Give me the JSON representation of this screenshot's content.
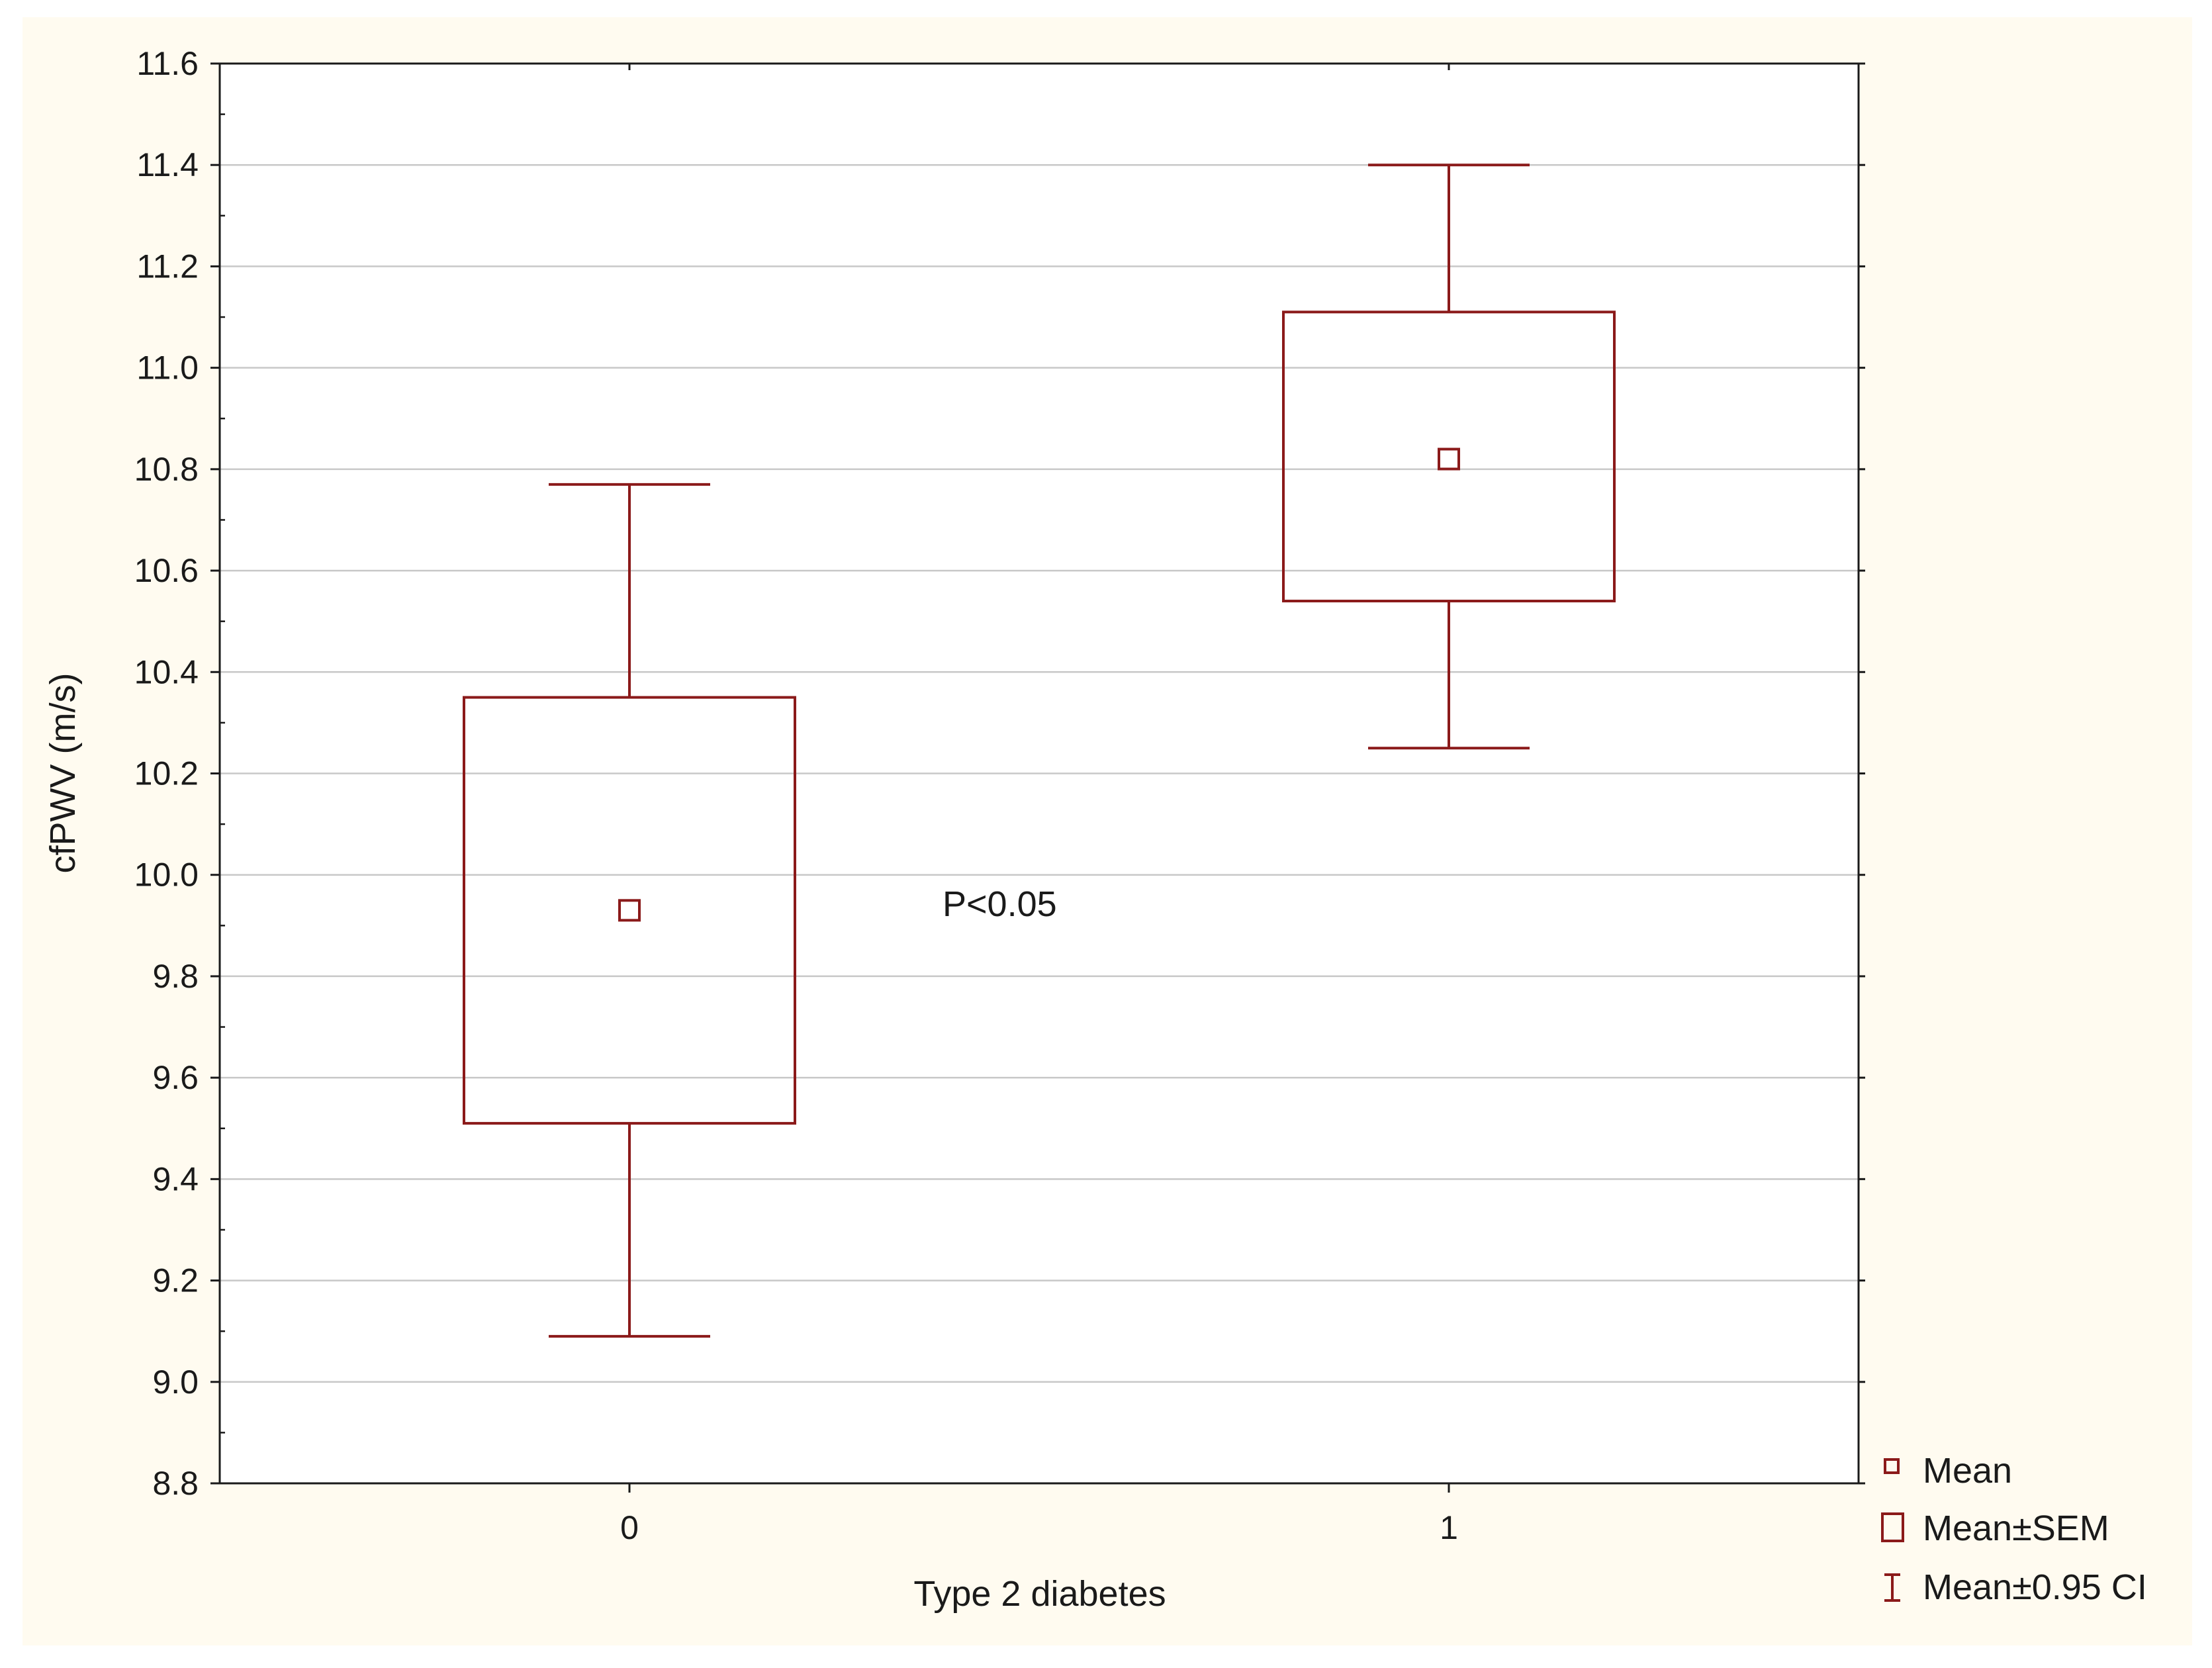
{
  "chart_data": {
    "type": "box",
    "xlabel": "Type 2 diabetes",
    "ylabel": "cfPWV (m/s)",
    "ylim": [
      8.8,
      11.6
    ],
    "y_ticks": [
      "11.6",
      "11.4",
      "11.2",
      "11.0",
      "10.8",
      "10.6",
      "10.4",
      "10.2",
      "10.0",
      "9.8",
      "9.6",
      "9.4",
      "9.2",
      "9.0",
      "8.8"
    ],
    "y_tick_values": [
      11.6,
      11.4,
      11.2,
      11.0,
      10.8,
      10.6,
      10.4,
      10.2,
      10.0,
      9.8,
      9.6,
      9.4,
      9.2,
      9.0,
      8.8
    ],
    "categories": [
      "0",
      "1"
    ],
    "groups": [
      {
        "category": "0",
        "mean": 9.93,
        "sem_low": 9.51,
        "sem_high": 10.35,
        "ci_low": 9.09,
        "ci_high": 10.77
      },
      {
        "category": "1",
        "mean": 10.82,
        "sem_low": 10.54,
        "sem_high": 11.11,
        "ci_low": 10.25,
        "ci_high": 11.4
      }
    ],
    "annotation": "P<0.05",
    "grid": true,
    "legend_position": "bottom-right",
    "legend": [
      "Mean",
      "Mean±SEM",
      "Mean±0.95 CI"
    ],
    "colors": {
      "series": "#8b1a1a",
      "background": "#fffbf0",
      "plot_background": "#ffffff",
      "grid": "#c8c8c8",
      "axis": "#1a1a1a"
    }
  }
}
